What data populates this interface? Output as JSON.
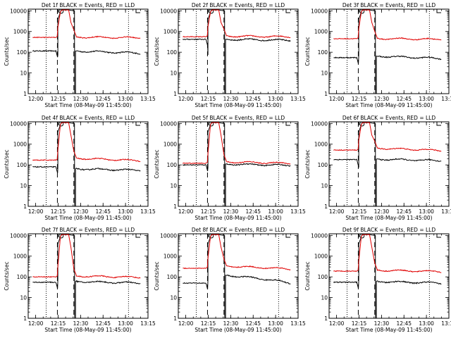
{
  "chart_data": [
    {
      "type": "line",
      "title": "Det 1f BLACK = Events, RED = LLD",
      "xlabel": "Start Time (08-May-09 11:45:00)",
      "ylabel": "Counts/sec",
      "xticks": [
        "12:00",
        "12:15",
        "12:30",
        "12:45",
        "13:00",
        "13:15"
      ],
      "yticks": [
        "1",
        "10",
        "100",
        "1000",
        "10000"
      ],
      "ylog": true,
      "ylim": [
        1,
        12000
      ],
      "xlim_min": [
        -5,
        75
      ],
      "series": [
        {
          "name": "Events",
          "base_before": 115,
          "base_after": 115,
          "base_end": 90,
          "peak": 11000
        },
        {
          "name": "LLD",
          "base_before": 520,
          "base_after": 540,
          "base_end": 500,
          "peak": 11000
        }
      ]
    },
    {
      "type": "line",
      "title": "Det 2f BLACK = Events, RED = LLD",
      "xlabel": "Start Time (08-May-09 11:45:00)",
      "ylabel": "Counts/sec",
      "xticks": [
        "12:00",
        "12:15",
        "12:30",
        "12:45",
        "13:00",
        "13:15"
      ],
      "yticks": [
        "1",
        "10",
        "100",
        "1000",
        "10000"
      ],
      "ylog": true,
      "ylim": [
        1,
        12000
      ],
      "xlim_min": [
        -5,
        75
      ],
      "series": [
        {
          "name": "Events",
          "base_before": 420,
          "base_after": 420,
          "base_end": 380,
          "peak": 11000
        },
        {
          "name": "LLD",
          "base_before": 560,
          "base_after": 600,
          "base_end": 560,
          "peak": 11000
        }
      ]
    },
    {
      "type": "line",
      "title": "Det 3f BLACK = Events, RED = LLD",
      "xlabel": "Start Time (08-May-09 11:45:00)",
      "ylabel": "Counts/sec",
      "xticks": [
        "12:00",
        "12:15",
        "12:30",
        "12:45",
        "13:00",
        "13:15"
      ],
      "yticks": [
        "1",
        "10",
        "100",
        "1000",
        "10000"
      ],
      "ylog": true,
      "ylim": [
        1,
        12000
      ],
      "xlim_min": [
        -5,
        75
      ],
      "series": [
        {
          "name": "Events",
          "base_before": 55,
          "base_after": 65,
          "base_end": 50,
          "peak": 11000
        },
        {
          "name": "LLD",
          "base_before": 450,
          "base_after": 460,
          "base_end": 420,
          "peak": 11000
        }
      ]
    },
    {
      "type": "line",
      "title": "Det 4f BLACK = Events, RED = LLD",
      "xlabel": "Start Time (08-May-09 11:45:00)",
      "ylabel": "Counts/sec",
      "xticks": [
        "12:00",
        "12:15",
        "12:30",
        "12:45",
        "13:00",
        "13:15"
      ],
      "yticks": [
        "1",
        "10",
        "100",
        "1000",
        "10000"
      ],
      "ylog": true,
      "ylim": [
        1,
        12000
      ],
      "xlim_min": [
        -5,
        75
      ],
      "series": [
        {
          "name": "Events",
          "base_before": 80,
          "base_after": 65,
          "base_end": 55,
          "peak": 11000
        },
        {
          "name": "LLD",
          "base_before": 170,
          "base_after": 210,
          "base_end": 160,
          "peak": 11000
        }
      ]
    },
    {
      "type": "line",
      "title": "Det 5f BLACK = Events, RED = LLD",
      "xlabel": "Start Time (08-May-09 11:45:00)",
      "ylabel": "Counts/sec",
      "xticks": [
        "12:00",
        "12:15",
        "12:30",
        "12:45",
        "13:00",
        "13:15"
      ],
      "yticks": [
        "1",
        "10",
        "100",
        "1000",
        "10000"
      ],
      "ylog": true,
      "ylim": [
        1,
        12000
      ],
      "xlim_min": [
        -5,
        75
      ],
      "series": [
        {
          "name": "Events",
          "base_before": 100,
          "base_after": 110,
          "base_end": 95,
          "peak": 11000
        },
        {
          "name": "LLD",
          "base_before": 120,
          "base_after": 140,
          "base_end": 120,
          "peak": 11000
        }
      ]
    },
    {
      "type": "line",
      "title": "Det 6f BLACK = Events, RED = LLD",
      "xlabel": "Start Time (08-May-09 11:45:00)",
      "ylabel": "Counts/sec",
      "xticks": [
        "12:00",
        "12:15",
        "12:30",
        "12:45",
        "13:00",
        "13:15"
      ],
      "yticks": [
        "1",
        "10",
        "100",
        "1000",
        "10000"
      ],
      "ylog": true,
      "ylim": [
        1,
        12000
      ],
      "xlim_min": [
        -5,
        75
      ],
      "series": [
        {
          "name": "Events",
          "base_before": 180,
          "base_after": 190,
          "base_end": 160,
          "peak": 11000
        },
        {
          "name": "LLD",
          "base_before": 520,
          "base_after": 640,
          "base_end": 500,
          "peak": 11000
        }
      ]
    },
    {
      "type": "line",
      "title": "Det 7f BLACK = Events, RED = LLD",
      "xlabel": "Start Time (08-May-09 11:45:00)",
      "ylabel": "Counts/sec",
      "xticks": [
        "12:00",
        "12:15",
        "12:30",
        "12:45",
        "13:00",
        "13:15"
      ],
      "yticks": [
        "1",
        "10",
        "100",
        "1000",
        "10000"
      ],
      "ylog": true,
      "ylim": [
        1,
        12000
      ],
      "xlim_min": [
        -5,
        75
      ],
      "series": [
        {
          "name": "Events",
          "base_before": 55,
          "base_after": 60,
          "base_end": 50,
          "peak": 11000
        },
        {
          "name": "LLD",
          "base_before": 100,
          "base_after": 110,
          "base_end": 95,
          "peak": 11000
        }
      ]
    },
    {
      "type": "line",
      "title": "Det 8f BLACK = Events, RED = LLD",
      "xlabel": "Start Time (08-May-09 11:45:00)",
      "ylabel": "Counts/sec",
      "xticks": [
        "12:00",
        "12:15",
        "12:30",
        "12:45",
        "13:00",
        "13:15"
      ],
      "yticks": [
        "1",
        "10",
        "100",
        "1000",
        "10000"
      ],
      "ylog": true,
      "ylim": [
        1,
        12000
      ],
      "xlim_min": [
        -5,
        75
      ],
      "series": [
        {
          "name": "Events",
          "base_before": 50,
          "base_after": 120,
          "base_end": 50,
          "peak": 11000
        },
        {
          "name": "LLD",
          "base_before": 260,
          "base_after": 330,
          "base_end": 240,
          "peak": 11000
        }
      ]
    },
    {
      "type": "line",
      "title": "Det 9f BLACK = Events, RED = LLD",
      "xlabel": "Start Time (08-May-09 11:45:00)",
      "ylabel": "Counts/sec",
      "xticks": [
        "12:00",
        "12:15",
        "12:30",
        "12:45",
        "13:00",
        "13:15"
      ],
      "yticks": [
        "1",
        "10",
        "100",
        "1000",
        "10000"
      ],
      "ylog": true,
      "ylim": [
        1,
        12000
      ],
      "xlim_min": [
        -5,
        75
      ],
      "series": [
        {
          "name": "Events",
          "base_before": 55,
          "base_after": 60,
          "base_end": 50,
          "peak": 11000
        },
        {
          "name": "LLD",
          "base_before": 190,
          "base_after": 210,
          "base_end": 180,
          "peak": 11000
        }
      ]
    }
  ],
  "markers": {
    "dotted_minutes": [
      7,
      62,
      75
    ],
    "dashed_minutes": [
      14.5,
      25.5
    ],
    "circle_minute": 17,
    "bracket_minute": 67
  },
  "colors": {
    "events": "#000000",
    "lld": "#e00000"
  }
}
